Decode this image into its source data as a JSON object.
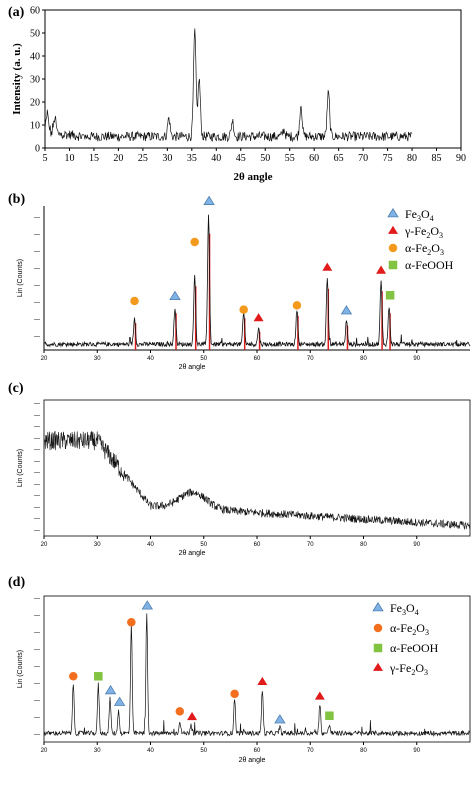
{
  "chart_data": [
    {
      "panel": "(a)",
      "type": "line",
      "xlabel": "2θ angle",
      "ylabel": "Intensity (a. u.)",
      "xlim": [
        5,
        90
      ],
      "ylim": [
        0,
        60
      ],
      "xticks": [
        5,
        10,
        15,
        20,
        25,
        30,
        35,
        40,
        45,
        50,
        55,
        60,
        65,
        70,
        75,
        80,
        85,
        90
      ],
      "yticks": [
        0,
        10,
        20,
        30,
        40,
        50,
        60
      ],
      "baseline": 5,
      "data_end": 80,
      "peaks": [
        {
          "x": 5.5,
          "y": 13
        },
        {
          "x": 7,
          "y": 12
        },
        {
          "x": 30.3,
          "y": 13
        },
        {
          "x": 35.6,
          "y": 51
        },
        {
          "x": 36.5,
          "y": 30
        },
        {
          "x": 43.3,
          "y": 12
        },
        {
          "x": 53.8,
          "y": 8
        },
        {
          "x": 57.3,
          "y": 19
        },
        {
          "x": 62.9,
          "y": 24
        },
        {
          "x": 74.2,
          "y": 5
        }
      ]
    },
    {
      "panel": "(b)",
      "type": "line",
      "xlabel": "2θ angle",
      "ylabel": "Lin (Counts)",
      "xlim": [
        20,
        100
      ],
      "ylim": [
        0,
        100
      ],
      "xticks": [
        20,
        30,
        40,
        50,
        60,
        70,
        80,
        90
      ],
      "baseline": 4,
      "peaks": [
        {
          "x": 37,
          "y": 22
        },
        {
          "x": 44.6,
          "y": 30
        },
        {
          "x": 48.3,
          "y": 52
        },
        {
          "x": 50.9,
          "y": 95
        },
        {
          "x": 57.5,
          "y": 26
        },
        {
          "x": 60.3,
          "y": 15
        },
        {
          "x": 67.5,
          "y": 28
        },
        {
          "x": 73.2,
          "y": 50
        },
        {
          "x": 76.8,
          "y": 20
        },
        {
          "x": 83.3,
          "y": 48
        },
        {
          "x": 84.8,
          "y": 30
        }
      ],
      "legend": [
        {
          "marker": "triangle",
          "color": "#7fb2e5",
          "base": "Fe",
          "s1": "3",
          "mid": "O",
          "s2": "4"
        },
        {
          "marker": "triangle",
          "color": "#e11b1b",
          "base": "γ-Fe",
          "s1": "2",
          "mid": "O",
          "s2": "3"
        },
        {
          "marker": "circle",
          "color": "#f39a1d",
          "base": "α-Fe",
          "s1": "2",
          "mid": "O",
          "s2": "3"
        },
        {
          "marker": "square",
          "color": "#82c341",
          "base": "α-FeOOH",
          "s1": "",
          "mid": "",
          "s2": ""
        }
      ],
      "markers": [
        {
          "x": 44.6,
          "y": 37,
          "shape": "triangle",
          "color": "#7fb2e5"
        },
        {
          "x": 51,
          "y": 103,
          "shape": "triangle",
          "color": "#7fb2e5"
        },
        {
          "x": 76.8,
          "y": 27,
          "shape": "triangle",
          "color": "#7fb2e5"
        },
        {
          "x": 60.3,
          "y": 22,
          "shape": "triangle",
          "color": "#e11b1b"
        },
        {
          "x": 73.2,
          "y": 57,
          "shape": "triangle",
          "color": "#e11b1b"
        },
        {
          "x": 83.3,
          "y": 55,
          "shape": "triangle",
          "color": "#e11b1b"
        },
        {
          "x": 37,
          "y": 34,
          "shape": "circle",
          "color": "#f39a1d"
        },
        {
          "x": 48.3,
          "y": 75,
          "shape": "circle",
          "color": "#f39a1d"
        },
        {
          "x": 57.5,
          "y": 28,
          "shape": "circle",
          "color": "#f39a1d"
        },
        {
          "x": 67.5,
          "y": 31,
          "shape": "circle",
          "color": "#f39a1d"
        },
        {
          "x": 85,
          "y": 38,
          "shape": "square",
          "color": "#82c341"
        }
      ]
    },
    {
      "panel": "(c)",
      "type": "line",
      "xlabel": "2θ angle",
      "ylabel": "Lin (Counts)",
      "xlim": [
        20,
        100
      ],
      "ylim": [
        0,
        100
      ],
      "xticks": [
        20,
        30,
        40,
        50,
        60,
        70,
        80,
        90
      ]
    },
    {
      "panel": "(d)",
      "type": "line",
      "xlabel": "2θ angle",
      "ylabel": "Lin (Counts)",
      "xlim": [
        20,
        100
      ],
      "ylim": [
        0,
        100
      ],
      "xticks": [
        20,
        30,
        40,
        50,
        60,
        70,
        80,
        90
      ],
      "baseline": 6,
      "peaks": [
        {
          "x": 25.5,
          "y": 40
        },
        {
          "x": 30.2,
          "y": 40
        },
        {
          "x": 32.4,
          "y": 30
        },
        {
          "x": 34,
          "y": 22
        },
        {
          "x": 36.4,
          "y": 80
        },
        {
          "x": 39.3,
          "y": 88
        },
        {
          "x": 45.5,
          "y": 15
        },
        {
          "x": 47.6,
          "y": 12
        },
        {
          "x": 55.8,
          "y": 30
        },
        {
          "x": 61,
          "y": 36
        },
        {
          "x": 64.3,
          "y": 10
        },
        {
          "x": 71.8,
          "y": 26
        },
        {
          "x": 73.6,
          "y": 12
        }
      ],
      "legend": [
        {
          "marker": "triangle",
          "color": "#7fb2e5",
          "base": "Fe",
          "s1": "3",
          "mid": "O",
          "s2": "4"
        },
        {
          "marker": "circle",
          "color": "#f36f1d",
          "base": "α-Fe",
          "s1": "2",
          "mid": "O",
          "s2": "3"
        },
        {
          "marker": "square",
          "color": "#82c341",
          "base": "α-FeOOH",
          "s1": "",
          "mid": "",
          "s2": ""
        },
        {
          "marker": "triangle",
          "color": "#e11b1b",
          "base": "γ-Fe",
          "s1": "2",
          "mid": "O",
          "s2": "3"
        }
      ],
      "markers": [
        {
          "x": 32.5,
          "y": 35,
          "shape": "triangle",
          "color": "#7fb2e5"
        },
        {
          "x": 34.2,
          "y": 27,
          "shape": "triangle",
          "color": "#7fb2e5"
        },
        {
          "x": 39.4,
          "y": 93,
          "shape": "triangle",
          "color": "#7fb2e5"
        },
        {
          "x": 64.3,
          "y": 15,
          "shape": "triangle",
          "color": "#7fb2e5"
        },
        {
          "x": 25.5,
          "y": 45,
          "shape": "circle",
          "color": "#f36f1d"
        },
        {
          "x": 36.4,
          "y": 82,
          "shape": "circle",
          "color": "#f36f1d"
        },
        {
          "x": 45.5,
          "y": 21,
          "shape": "circle",
          "color": "#f36f1d"
        },
        {
          "x": 55.8,
          "y": 33,
          "shape": "circle",
          "color": "#f36f1d"
        },
        {
          "x": 30.2,
          "y": 45,
          "shape": "square",
          "color": "#82c341"
        },
        {
          "x": 73.6,
          "y": 18,
          "shape": "square",
          "color": "#82c341"
        },
        {
          "x": 47.8,
          "y": 17,
          "shape": "triangle",
          "color": "#e11b1b"
        },
        {
          "x": 61,
          "y": 41,
          "shape": "triangle",
          "color": "#e11b1b"
        },
        {
          "x": 71.8,
          "y": 31,
          "shape": "triangle",
          "color": "#e11b1b"
        }
      ]
    }
  ]
}
